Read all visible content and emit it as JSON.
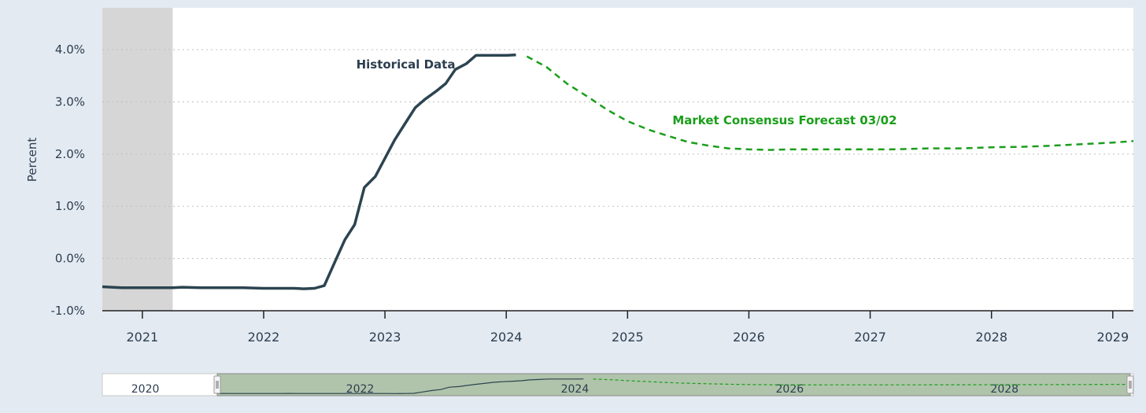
{
  "chart_data": {
    "type": "line",
    "ylabel": "Percent",
    "ylim": [
      -1.0,
      4.8
    ],
    "y_ticks": [
      "4.0%",
      "3.0%",
      "2.0%",
      "1.0%",
      "0.0%",
      "-1.0%"
    ],
    "y_tick_values": [
      4.0,
      3.0,
      2.0,
      1.0,
      0.0,
      -1.0
    ],
    "x_ticks": [
      "2021",
      "2022",
      "2023",
      "2024",
      "2025",
      "2026",
      "2027",
      "2028",
      "2029"
    ],
    "x_tick_values": [
      2021,
      2022,
      2023,
      2024,
      2025,
      2026,
      2027,
      2028,
      2029
    ],
    "xlim": [
      2020.67,
      2029.17
    ],
    "grid": "horizontal dotted",
    "shaded_region": [
      2020.67,
      2021.25
    ],
    "annotations": {
      "historical": "Historical Data",
      "forecast": "Market Consensus Forecast 03/02"
    },
    "colors": {
      "historical": "#2c4450",
      "forecast": "#1a9e1a",
      "shade": "#d6d6d6"
    },
    "series": [
      {
        "key": "historical",
        "style": "solid",
        "points": [
          [
            2020.67,
            -0.54
          ],
          [
            2020.83,
            -0.56
          ],
          [
            2021.0,
            -0.56
          ],
          [
            2021.17,
            -0.56
          ],
          [
            2021.25,
            -0.56
          ],
          [
            2021.33,
            -0.55
          ],
          [
            2021.5,
            -0.56
          ],
          [
            2021.75,
            -0.56
          ],
          [
            2021.83,
            -0.56
          ],
          [
            2022.0,
            -0.57
          ],
          [
            2022.17,
            -0.57
          ],
          [
            2022.25,
            -0.57
          ],
          [
            2022.33,
            -0.58
          ],
          [
            2022.42,
            -0.57
          ],
          [
            2022.5,
            -0.52
          ],
          [
            2022.58,
            -0.1
          ],
          [
            2022.67,
            0.36
          ],
          [
            2022.75,
            0.65
          ],
          [
            2022.83,
            1.36
          ],
          [
            2022.92,
            1.57
          ],
          [
            2023.0,
            1.92
          ],
          [
            2023.08,
            2.27
          ],
          [
            2023.17,
            2.6
          ],
          [
            2023.25,
            2.89
          ],
          [
            2023.33,
            3.05
          ],
          [
            2023.42,
            3.2
          ],
          [
            2023.5,
            3.35
          ],
          [
            2023.58,
            3.62
          ],
          [
            2023.67,
            3.73
          ],
          [
            2023.75,
            3.89
          ],
          [
            2023.83,
            3.89
          ],
          [
            2023.92,
            3.89
          ],
          [
            2024.0,
            3.89
          ],
          [
            2024.08,
            3.9
          ]
        ]
      },
      {
        "key": "forecast",
        "style": "dashed",
        "points": [
          [
            2024.17,
            3.87
          ],
          [
            2024.33,
            3.67
          ],
          [
            2024.5,
            3.35
          ],
          [
            2024.67,
            3.1
          ],
          [
            2024.83,
            2.85
          ],
          [
            2025.0,
            2.63
          ],
          [
            2025.17,
            2.47
          ],
          [
            2025.33,
            2.35
          ],
          [
            2025.5,
            2.23
          ],
          [
            2025.67,
            2.16
          ],
          [
            2025.83,
            2.11
          ],
          [
            2026.0,
            2.09
          ],
          [
            2026.17,
            2.08
          ],
          [
            2026.33,
            2.09
          ],
          [
            2026.5,
            2.09
          ],
          [
            2026.67,
            2.09
          ],
          [
            2026.83,
            2.09
          ],
          [
            2027.0,
            2.09
          ],
          [
            2027.17,
            2.09
          ],
          [
            2027.5,
            2.11
          ],
          [
            2027.75,
            2.11
          ],
          [
            2028.0,
            2.13
          ],
          [
            2028.25,
            2.14
          ],
          [
            2028.5,
            2.16
          ],
          [
            2028.75,
            2.19
          ],
          [
            2029.0,
            2.22
          ],
          [
            2029.17,
            2.25
          ]
        ]
      }
    ],
    "navigator": {
      "labels": [
        "2020",
        "2022",
        "2024",
        "2026",
        "2028"
      ],
      "label_values": [
        2020,
        2022,
        2024,
        2026,
        2028
      ],
      "xlim": [
        2019.6,
        2029.2
      ],
      "selected_range": [
        2020.67,
        2029.17
      ]
    }
  }
}
